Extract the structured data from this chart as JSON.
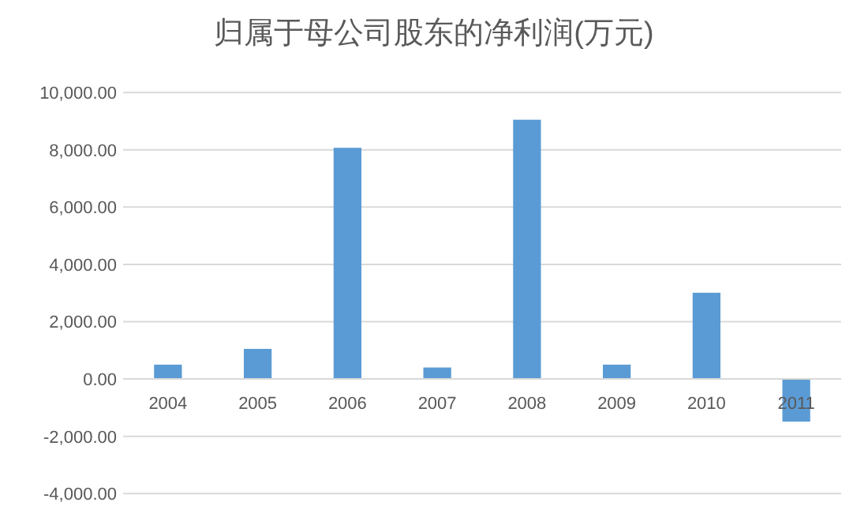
{
  "chart_data": {
    "type": "bar",
    "title": "归属于母公司股东的净利润(万元)",
    "categories": [
      "2004",
      "2005",
      "2006",
      "2007",
      "2008",
      "2009",
      "2010",
      "2011"
    ],
    "values": [
      500,
      1050,
      8070,
      400,
      9050,
      500,
      3010,
      -1490
    ],
    "color": "#5b9bd5",
    "ylim": [
      -4000,
      10000
    ],
    "yticks": [
      {
        "value": -4000,
        "label": "-4,000.00"
      },
      {
        "value": -2000,
        "label": "-2,000.00"
      },
      {
        "value": 0,
        "label": "0.00"
      },
      {
        "value": 2000,
        "label": "2,000.00"
      },
      {
        "value": 4000,
        "label": "4,000.00"
      },
      {
        "value": 6000,
        "label": "6,000.00"
      },
      {
        "value": 8000,
        "label": "8,000.00"
      },
      {
        "value": 10000,
        "label": "10,000.00"
      }
    ],
    "grid": "y"
  }
}
